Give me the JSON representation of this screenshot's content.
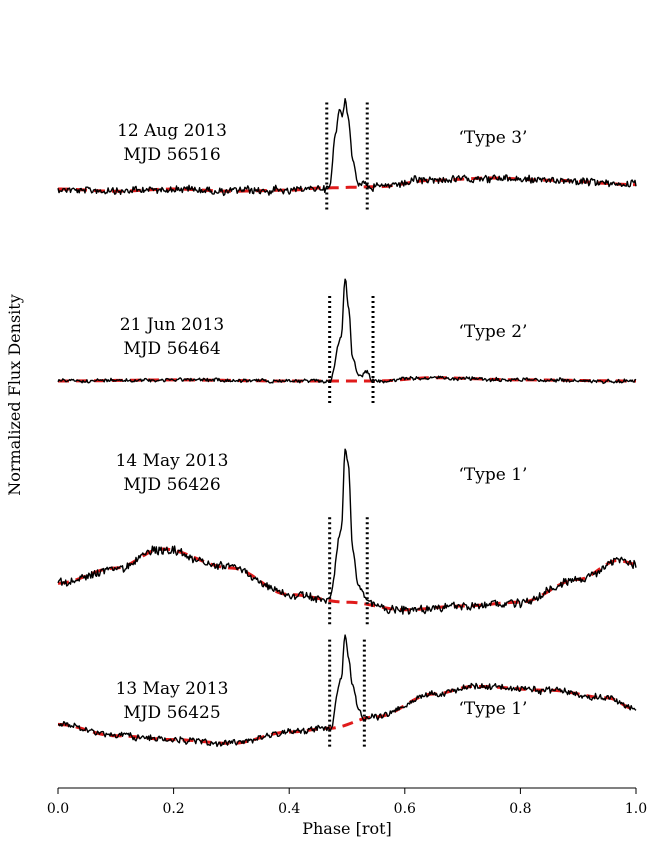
{
  "chart_data": {
    "type": "line",
    "xlabel": "Phase [rot]",
    "ylabel": "Normalized Flux Density",
    "xlim": [
      0.0,
      1.0
    ],
    "xticks": [
      "0.0",
      "0.2",
      "0.4",
      "0.6",
      "0.8",
      "1.0"
    ],
    "grid": false,
    "colors": {
      "profile": "#000000",
      "model": "#e01b1b",
      "markers": "#000000"
    },
    "panels": [
      {
        "date": "12 Aug 2013",
        "mjd": "MJD 56516",
        "type_label": "‘Type 3’",
        "window": [
          0.465,
          0.535
        ],
        "model": {
          "x": [
            0.0,
            0.1,
            0.2,
            0.3,
            0.4,
            0.46,
            0.55,
            0.65,
            0.75,
            0.85,
            1.0
          ],
          "y": [
            0.5,
            0.4,
            0.5,
            0.4,
            0.45,
            0.55,
            0.6,
            0.9,
            1.0,
            0.9,
            0.7
          ]
        },
        "pulse": {
          "x": [
            0.47,
            0.48,
            0.487,
            0.492,
            0.497,
            0.502,
            0.51,
            0.52,
            0.53,
            0.54
          ],
          "y": [
            0.6,
            3.0,
            4.2,
            3.8,
            4.6,
            3.8,
            1.8,
            0.7,
            0.8,
            0.6
          ]
        }
      },
      {
        "date": "21 Jun 2013",
        "mjd": "MJD 56464",
        "type_label": "‘Type 2’",
        "window": [
          0.47,
          0.545
        ],
        "model": {
          "x": [
            0.0,
            0.2,
            0.4,
            0.55,
            0.65,
            0.8,
            1.0
          ],
          "y": [
            0.5,
            0.55,
            0.5,
            0.5,
            0.65,
            0.55,
            0.5
          ]
        },
        "pulse": {
          "x": [
            0.47,
            0.49,
            0.497,
            0.502,
            0.51,
            0.52,
            0.535,
            0.545
          ],
          "y": [
            0.5,
            2.5,
            5.2,
            4.0,
            1.5,
            0.7,
            0.9,
            0.5
          ]
        }
      },
      {
        "date": "14 May 2013",
        "mjd": "MJD 56426",
        "type_label": "‘Type 1’",
        "window": [
          0.47,
          0.535
        ],
        "model": {
          "x": [
            0.0,
            0.1,
            0.18,
            0.3,
            0.4,
            0.5,
            0.6,
            0.7,
            0.8,
            0.9,
            0.97,
            1.0
          ],
          "y": [
            1.1,
            1.5,
            2.0,
            1.5,
            0.8,
            0.6,
            0.4,
            0.5,
            0.6,
            1.2,
            1.7,
            1.6
          ]
        },
        "pulse": {
          "x": [
            0.47,
            0.49,
            0.497,
            0.502,
            0.51,
            0.52,
            0.535
          ],
          "y": [
            0.7,
            2.5,
            4.6,
            4.3,
            2.0,
            1.0,
            0.7
          ]
        }
      },
      {
        "date": "13 May 2013",
        "mjd": "MJD 56425",
        "type_label": "‘Type 1’",
        "window": [
          0.47,
          0.53
        ],
        "model": {
          "x": [
            0.0,
            0.1,
            0.2,
            0.3,
            0.4,
            0.47,
            0.55,
            0.65,
            0.72,
            0.85,
            0.95,
            1.0
          ],
          "y": [
            1.2,
            0.9,
            0.8,
            0.7,
            1.0,
            1.1,
            1.4,
            2.0,
            2.2,
            2.1,
            1.9,
            1.6
          ]
        },
        "pulse": {
          "x": [
            0.47,
            0.49,
            0.497,
            0.502,
            0.51,
            0.52,
            0.53
          ],
          "y": [
            1.0,
            2.4,
            3.6,
            3.0,
            2.2,
            1.6,
            1.3
          ]
        }
      }
    ]
  }
}
